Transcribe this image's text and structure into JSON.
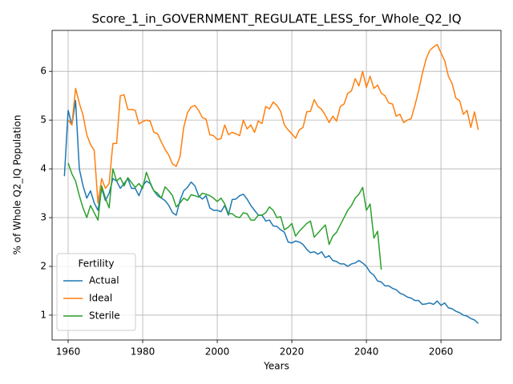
{
  "chart_data": {
    "type": "line",
    "title": "Score_1_in_GOVERNMENT_REGULATE_LESS_for_Whole_Q2_IQ",
    "x_label": "Years",
    "y_label": "% of Whole Q2_IQ Population",
    "legend_title": "Fertility",
    "legend_position": "lower left",
    "grid": true,
    "xlim": [
      1955.7,
      2076.1
    ],
    "ylim": [
      0.49,
      6.84
    ],
    "xticks": [
      1960,
      1980,
      2000,
      2020,
      2040,
      2060
    ],
    "yticks": [
      1,
      2,
      3,
      4,
      5,
      6
    ],
    "x": [
      1959,
      1960,
      1961,
      1962,
      1963,
      1964,
      1965,
      1966,
      1967,
      1968,
      1969,
      1970,
      1971,
      1972,
      1973,
      1974,
      1975,
      1976,
      1977,
      1978,
      1979,
      1980,
      1981,
      1982,
      1983,
      1984,
      1985,
      1986,
      1987,
      1988,
      1989,
      1990,
      1991,
      1992,
      1993,
      1994,
      1995,
      1996,
      1997,
      1998,
      1999,
      2000,
      2001,
      2002,
      2003,
      2004,
      2005,
      2006,
      2007,
      2008,
      2009,
      2010,
      2011,
      2012,
      2013,
      2014,
      2015,
      2016,
      2017,
      2018,
      2019,
      2020,
      2021,
      2022,
      2023,
      2024,
      2025,
      2026,
      2027,
      2028,
      2029,
      2030,
      2031,
      2032,
      2033,
      2034,
      2035,
      2036,
      2037,
      2038,
      2039,
      2040,
      2041,
      2042,
      2043,
      2044,
      2045,
      2046,
      2047,
      2048,
      2049,
      2050,
      2051,
      2052,
      2053,
      2054,
      2055,
      2056,
      2057,
      2058,
      2059,
      2060,
      2061,
      2062,
      2063,
      2064,
      2065,
      2066,
      2067,
      2068,
      2069,
      2070
    ],
    "series": [
      {
        "name": "Actual",
        "color": "#1f77b4",
        "values": [
          3.85,
          5.2,
          4.9,
          5.4,
          4.0,
          3.65,
          3.4,
          3.55,
          3.3,
          3.15,
          3.6,
          3.35,
          3.5,
          3.8,
          3.75,
          3.6,
          3.7,
          3.8,
          3.6,
          3.6,
          3.45,
          3.65,
          3.75,
          3.7,
          3.55,
          3.45,
          3.4,
          3.35,
          3.25,
          3.1,
          3.05,
          3.35,
          3.55,
          3.62,
          3.73,
          3.65,
          3.45,
          3.38,
          3.45,
          3.2,
          3.15,
          3.15,
          3.12,
          3.25,
          3.05,
          3.37,
          3.38,
          3.45,
          3.48,
          3.38,
          3.25,
          3.15,
          3.05,
          3.05,
          2.93,
          2.95,
          2.83,
          2.82,
          2.75,
          2.7,
          2.5,
          2.48,
          2.52,
          2.5,
          2.45,
          2.35,
          2.28,
          2.3,
          2.25,
          2.3,
          2.18,
          2.22,
          2.12,
          2.1,
          2.05,
          2.05,
          2.0,
          2.05,
          2.07,
          2.12,
          2.07,
          2.0,
          1.88,
          1.82,
          1.7,
          1.68,
          1.6,
          1.6,
          1.55,
          1.52,
          1.45,
          1.42,
          1.37,
          1.35,
          1.3,
          1.3,
          1.22,
          1.23,
          1.25,
          1.22,
          1.29,
          1.2,
          1.25,
          1.15,
          1.13,
          1.08,
          1.05,
          1.0,
          0.98,
          0.93,
          0.9,
          0.83
        ]
      },
      {
        "name": "Ideal",
        "color": "#ff7f0e",
        "values": [
          null,
          5.0,
          4.9,
          5.65,
          5.35,
          5.1,
          4.7,
          4.5,
          4.38,
          3.3,
          3.8,
          3.6,
          3.7,
          4.52,
          4.52,
          5.5,
          5.52,
          5.22,
          5.22,
          5.2,
          4.92,
          4.97,
          5.0,
          4.98,
          4.75,
          4.72,
          4.55,
          4.4,
          4.28,
          4.1,
          4.05,
          4.25,
          4.85,
          5.15,
          5.27,
          5.3,
          5.2,
          5.05,
          5.02,
          4.7,
          4.68,
          4.6,
          4.62,
          4.9,
          4.7,
          4.75,
          4.72,
          4.68,
          5.0,
          4.82,
          4.9,
          4.75,
          4.98,
          4.93,
          5.28,
          5.23,
          5.37,
          5.3,
          5.18,
          4.9,
          4.8,
          4.72,
          4.63,
          4.8,
          4.85,
          5.17,
          5.18,
          5.42,
          5.28,
          5.22,
          5.1,
          4.95,
          5.08,
          4.98,
          5.28,
          5.33,
          5.55,
          5.6,
          5.85,
          5.7,
          6.0,
          5.67,
          5.9,
          5.65,
          5.72,
          5.55,
          5.5,
          5.35,
          5.33,
          5.08,
          5.12,
          4.95,
          5.0,
          5.03,
          5.3,
          5.6,
          5.95,
          6.25,
          6.43,
          6.5,
          6.55,
          6.38,
          6.22,
          5.9,
          5.75,
          5.45,
          5.4,
          5.12,
          5.2,
          4.85,
          5.17,
          4.8
        ]
      },
      {
        "name": "Sterile",
        "color": "#2ca02c",
        "values": [
          null,
          4.12,
          3.9,
          3.75,
          3.45,
          3.2,
          3.0,
          3.25,
          3.1,
          2.95,
          3.65,
          3.4,
          3.2,
          4.0,
          3.75,
          3.82,
          3.65,
          3.82,
          3.72,
          3.62,
          3.7,
          3.6,
          3.93,
          3.72,
          3.55,
          3.5,
          3.4,
          3.63,
          3.55,
          3.45,
          3.22,
          3.3,
          3.4,
          3.35,
          3.47,
          3.45,
          3.42,
          3.5,
          3.48,
          3.45,
          3.4,
          3.33,
          3.4,
          3.28,
          3.08,
          3.08,
          3.02,
          3.0,
          3.1,
          3.08,
          2.95,
          2.95,
          3.05,
          3.05,
          3.1,
          3.22,
          3.15,
          3.0,
          3.02,
          2.75,
          2.8,
          2.88,
          2.62,
          2.72,
          2.8,
          2.88,
          2.93,
          2.6,
          2.68,
          2.77,
          2.85,
          2.45,
          2.62,
          2.7,
          2.85,
          3.0,
          3.15,
          3.25,
          3.4,
          3.48,
          3.62,
          3.15,
          3.28,
          2.58,
          2.72,
          1.93,
          null,
          null,
          null,
          null,
          null,
          null,
          null,
          null,
          null,
          null,
          null,
          null,
          null,
          null,
          null,
          null,
          null,
          null,
          null,
          null,
          null,
          null,
          null,
          null,
          null,
          null
        ]
      }
    ]
  }
}
